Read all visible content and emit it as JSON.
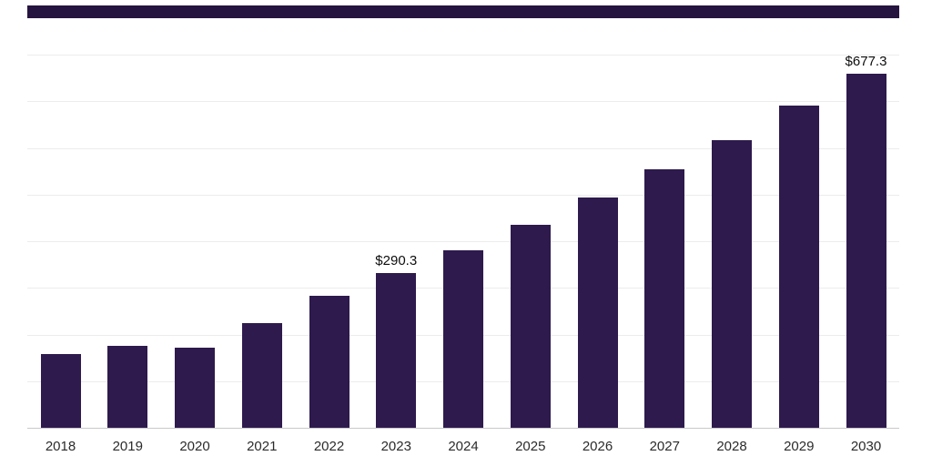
{
  "top_bar": {
    "color": "#261440"
  },
  "chart_data": {
    "type": "bar",
    "title": "",
    "xlabel": "",
    "ylabel": "",
    "categories": [
      "2018",
      "2019",
      "2020",
      "2021",
      "2022",
      "2023",
      "2024",
      "2025",
      "2026",
      "2027",
      "2028",
      "2029",
      "2030"
    ],
    "values": [
      139,
      153,
      151,
      196,
      247,
      290.3,
      333,
      380,
      432,
      485,
      540,
      605,
      677.3
    ],
    "data_labels": [
      "",
      "",
      "",
      "",
      "",
      "$290.3",
      "",
      "",
      "",
      "",
      "",
      "",
      "$677.3"
    ],
    "bar_color": "#2e1a4d",
    "ylim": [
      0,
      700
    ],
    "grid": true,
    "gridline_count": 8,
    "legend": "none",
    "currency_unit": "$"
  }
}
